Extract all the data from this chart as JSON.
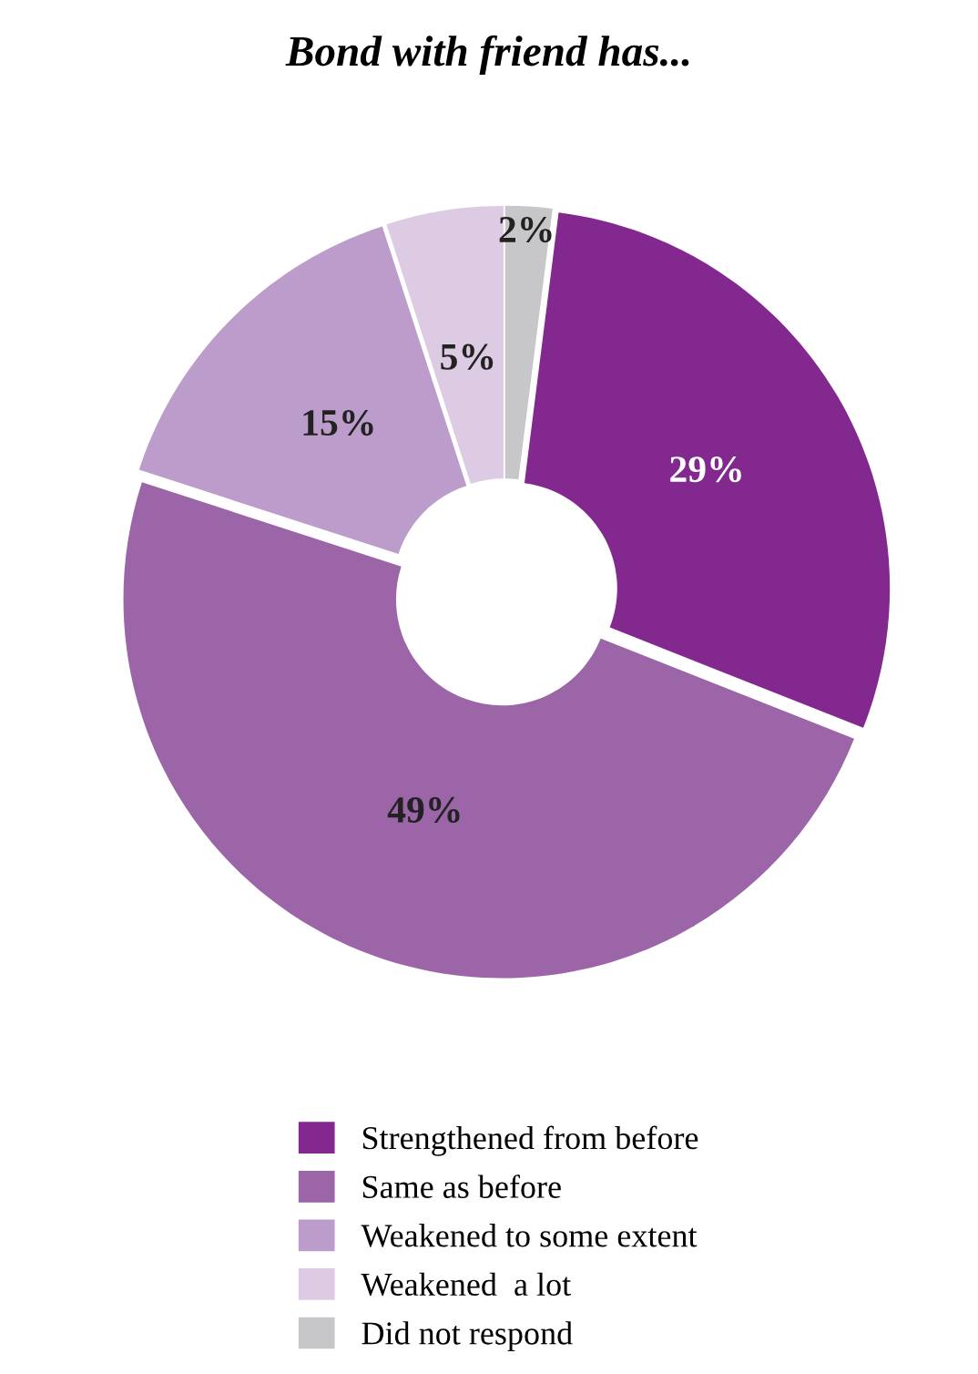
{
  "chart_data": {
    "type": "donut",
    "title": "Bond with friend has...",
    "categories": [
      "Strengthened from before",
      "Same as before",
      "Weakened to some extent",
      "Weakened  a lot",
      "Did not respond"
    ],
    "values": [
      29,
      49,
      15,
      5,
      2
    ],
    "colors": [
      "#82288f",
      "#9b65a8",
      "#bc9cca",
      "#dccbe3",
      "#c7c7c9"
    ],
    "value_labels": [
      "29%",
      "49%",
      "15%",
      "5%",
      "2%"
    ],
    "legend": "bottom"
  }
}
